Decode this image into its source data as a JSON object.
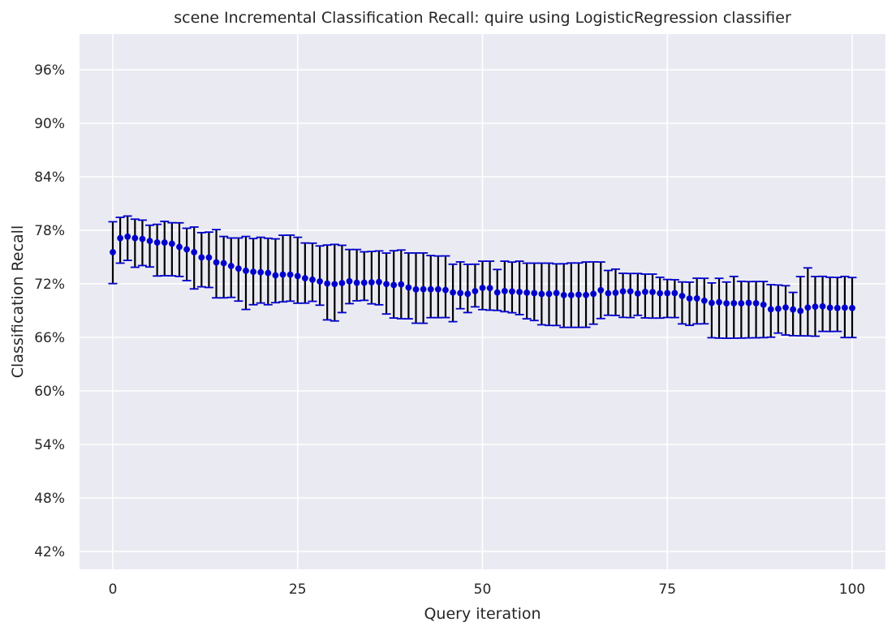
{
  "chart_data": {
    "type": "scatter",
    "title": "scene Incremental Classification Recall: quire using LogisticRegression classifier",
    "xlabel": "Query iteration",
    "ylabel": "Classification Recall",
    "xlim": [
      -4.5,
      104.5
    ],
    "ylim": [
      0.4,
      1.0
    ],
    "xticks": [
      0,
      25,
      50,
      75,
      100
    ],
    "xtick_labels": [
      "0",
      "25",
      "50",
      "75",
      "100"
    ],
    "yticks": [
      0.42,
      0.48,
      0.54,
      0.6,
      0.66,
      0.72,
      0.78,
      0.84,
      0.9,
      0.96
    ],
    "ytick_labels": [
      "42%",
      "48%",
      "54%",
      "60%",
      "66%",
      "72%",
      "78%",
      "84%",
      "90%",
      "96%"
    ],
    "grid": true,
    "colors": {
      "background": "#eaeaf2",
      "grid": "#ffffff",
      "marker": "#0000cc",
      "errorbar_line": "#000000",
      "errorbar_cap": "#0000cc"
    },
    "series": [
      {
        "x": [
          0,
          1,
          2,
          3,
          4,
          5,
          6,
          7,
          8,
          9,
          10,
          11,
          12,
          13,
          14,
          15,
          16,
          17,
          18,
          19,
          20,
          21,
          22,
          23,
          24,
          25,
          26,
          27,
          28,
          29,
          30,
          31,
          32,
          33,
          34,
          35,
          36,
          37,
          38,
          39,
          40,
          41,
          42,
          43,
          44,
          45,
          46,
          47,
          48,
          49,
          50,
          51,
          52,
          53,
          54,
          55,
          56,
          57,
          58,
          59,
          60,
          61,
          62,
          63,
          64,
          65,
          66,
          67,
          68,
          69,
          70,
          71,
          72,
          73,
          74,
          75,
          76,
          77,
          78,
          79,
          80,
          81,
          82,
          83,
          84,
          85,
          86,
          87,
          88,
          89,
          90,
          91,
          92,
          93,
          94,
          95,
          96,
          97,
          98,
          99,
          100
        ],
        "mean": [
          0.7555,
          0.7712,
          0.7729,
          0.7713,
          0.7703,
          0.7681,
          0.7664,
          0.7663,
          0.765,
          0.7614,
          0.7586,
          0.7555,
          0.7497,
          0.7495,
          0.7441,
          0.7432,
          0.74,
          0.7371,
          0.7347,
          0.7335,
          0.733,
          0.7322,
          0.7295,
          0.7304,
          0.7303,
          0.7287,
          0.7263,
          0.7247,
          0.7227,
          0.7203,
          0.7198,
          0.7209,
          0.7229,
          0.7212,
          0.7213,
          0.7217,
          0.7221,
          0.7198,
          0.7187,
          0.7194,
          0.7159,
          0.7138,
          0.714,
          0.7139,
          0.7139,
          0.7131,
          0.7103,
          0.7097,
          0.7088,
          0.7118,
          0.7155,
          0.7152,
          0.7103,
          0.7119,
          0.7115,
          0.7109,
          0.7101,
          0.7096,
          0.7086,
          0.7088,
          0.7097,
          0.7074,
          0.7074,
          0.7078,
          0.7075,
          0.7088,
          0.7129,
          0.7094,
          0.71,
          0.7116,
          0.7116,
          0.7092,
          0.711,
          0.7108,
          0.7094,
          0.7096,
          0.7097,
          0.7065,
          0.7036,
          0.7037,
          0.7011,
          0.6986,
          0.6994,
          0.6982,
          0.6983,
          0.6982,
          0.6987,
          0.6983,
          0.6966,
          0.6915,
          0.6921,
          0.6935,
          0.6913,
          0.6897,
          0.6934,
          0.6944,
          0.6948,
          0.6933,
          0.6929,
          0.6933,
          0.6929
        ],
        "lower": [
          0.7203,
          0.7432,
          0.7463,
          0.7386,
          0.7405,
          0.7389,
          0.7288,
          0.7291,
          0.729,
          0.7283,
          0.7236,
          0.7143,
          0.7167,
          0.7159,
          0.7043,
          0.7043,
          0.7048,
          0.7007,
          0.6913,
          0.6966,
          0.6985,
          0.6966,
          0.6989,
          0.6998,
          0.7006,
          0.6983,
          0.6984,
          0.7004,
          0.6961,
          0.6796,
          0.6784,
          0.6878,
          0.6978,
          0.701,
          0.7015,
          0.6976,
          0.6965,
          0.6862,
          0.6817,
          0.6809,
          0.6808,
          0.6759,
          0.6758,
          0.6821,
          0.6821,
          0.6822,
          0.6776,
          0.6921,
          0.6878,
          0.6942,
          0.6911,
          0.6905,
          0.6902,
          0.6888,
          0.6876,
          0.6855,
          0.6808,
          0.6789,
          0.6741,
          0.6734,
          0.6733,
          0.6712,
          0.6712,
          0.6712,
          0.6713,
          0.6748,
          0.6811,
          0.6848,
          0.6846,
          0.6824,
          0.6822,
          0.6847,
          0.6818,
          0.6816,
          0.6816,
          0.6823,
          0.6822,
          0.6751,
          0.6735,
          0.6751,
          0.6752,
          0.6596,
          0.6592,
          0.659,
          0.6591,
          0.6592,
          0.6594,
          0.6595,
          0.6597,
          0.6602,
          0.6648,
          0.6627,
          0.6619,
          0.6617,
          0.6616,
          0.6613,
          0.6667,
          0.6666,
          0.6667,
          0.6598,
          0.6598
        ],
        "upper": [
          0.7896,
          0.7945,
          0.796,
          0.7925,
          0.7914,
          0.7857,
          0.7867,
          0.79,
          0.7885,
          0.7884,
          0.7823,
          0.7837,
          0.7774,
          0.778,
          0.7808,
          0.7731,
          0.7714,
          0.7714,
          0.7731,
          0.7708,
          0.7722,
          0.7711,
          0.7704,
          0.7745,
          0.7746,
          0.7722,
          0.7658,
          0.7656,
          0.7625,
          0.7635,
          0.7642,
          0.7632,
          0.7585,
          0.7585,
          0.7559,
          0.7563,
          0.7569,
          0.7545,
          0.7571,
          0.7579,
          0.7546,
          0.7546,
          0.7546,
          0.7517,
          0.7512,
          0.7513,
          0.742,
          0.7446,
          0.7419,
          0.742,
          0.7454,
          0.7454,
          0.7361,
          0.7454,
          0.7444,
          0.7454,
          0.7432,
          0.7432,
          0.7432,
          0.7432,
          0.7424,
          0.7425,
          0.7434,
          0.7434,
          0.7445,
          0.7446,
          0.7445,
          0.735,
          0.7365,
          0.7318,
          0.7316,
          0.7316,
          0.7309,
          0.7309,
          0.7273,
          0.7249,
          0.7246,
          0.7221,
          0.7219,
          0.7263,
          0.7262,
          0.721,
          0.7262,
          0.722,
          0.7283,
          0.7228,
          0.7225,
          0.7226,
          0.7226,
          0.7191,
          0.7187,
          0.7179,
          0.7104,
          0.7281,
          0.7379,
          0.7282,
          0.7284,
          0.7274,
          0.7272,
          0.7283,
          0.7271
        ]
      }
    ]
  }
}
